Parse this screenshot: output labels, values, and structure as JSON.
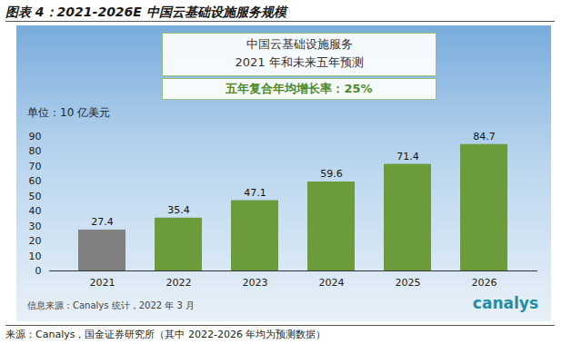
{
  "chart_data": {
    "type": "bar",
    "figure_title": "图表 4：2021-2026E 中国云基础设施服务规模",
    "title": "中国云基础设施服务",
    "subtitle": "2021 年和未来五年预测",
    "annotation": "五年复合年均增长率：25%",
    "y_label": "单位：10 亿美元",
    "categories": [
      "2021",
      "2022",
      "2023",
      "2024",
      "2025",
      "2026"
    ],
    "values": [
      27.4,
      35.4,
      47.1,
      59.6,
      71.4,
      84.7
    ],
    "colors": [
      "#808080",
      "#6b9b3a",
      "#6b9b3a",
      "#6b9b3a",
      "#6b9b3a",
      "#6b9b3a"
    ],
    "ylim": [
      0,
      90
    ],
    "yticks": [
      0,
      10,
      20,
      30,
      40,
      50,
      60,
      70,
      80,
      90
    ],
    "grid": false,
    "data_labels": true,
    "footer": "信息来源：Canalys 统计，2022 年 3 月",
    "logo": "canalys",
    "source": "来源：Canalys，国金证券研究所（其中 2022-2026 年均为预测数据）"
  }
}
